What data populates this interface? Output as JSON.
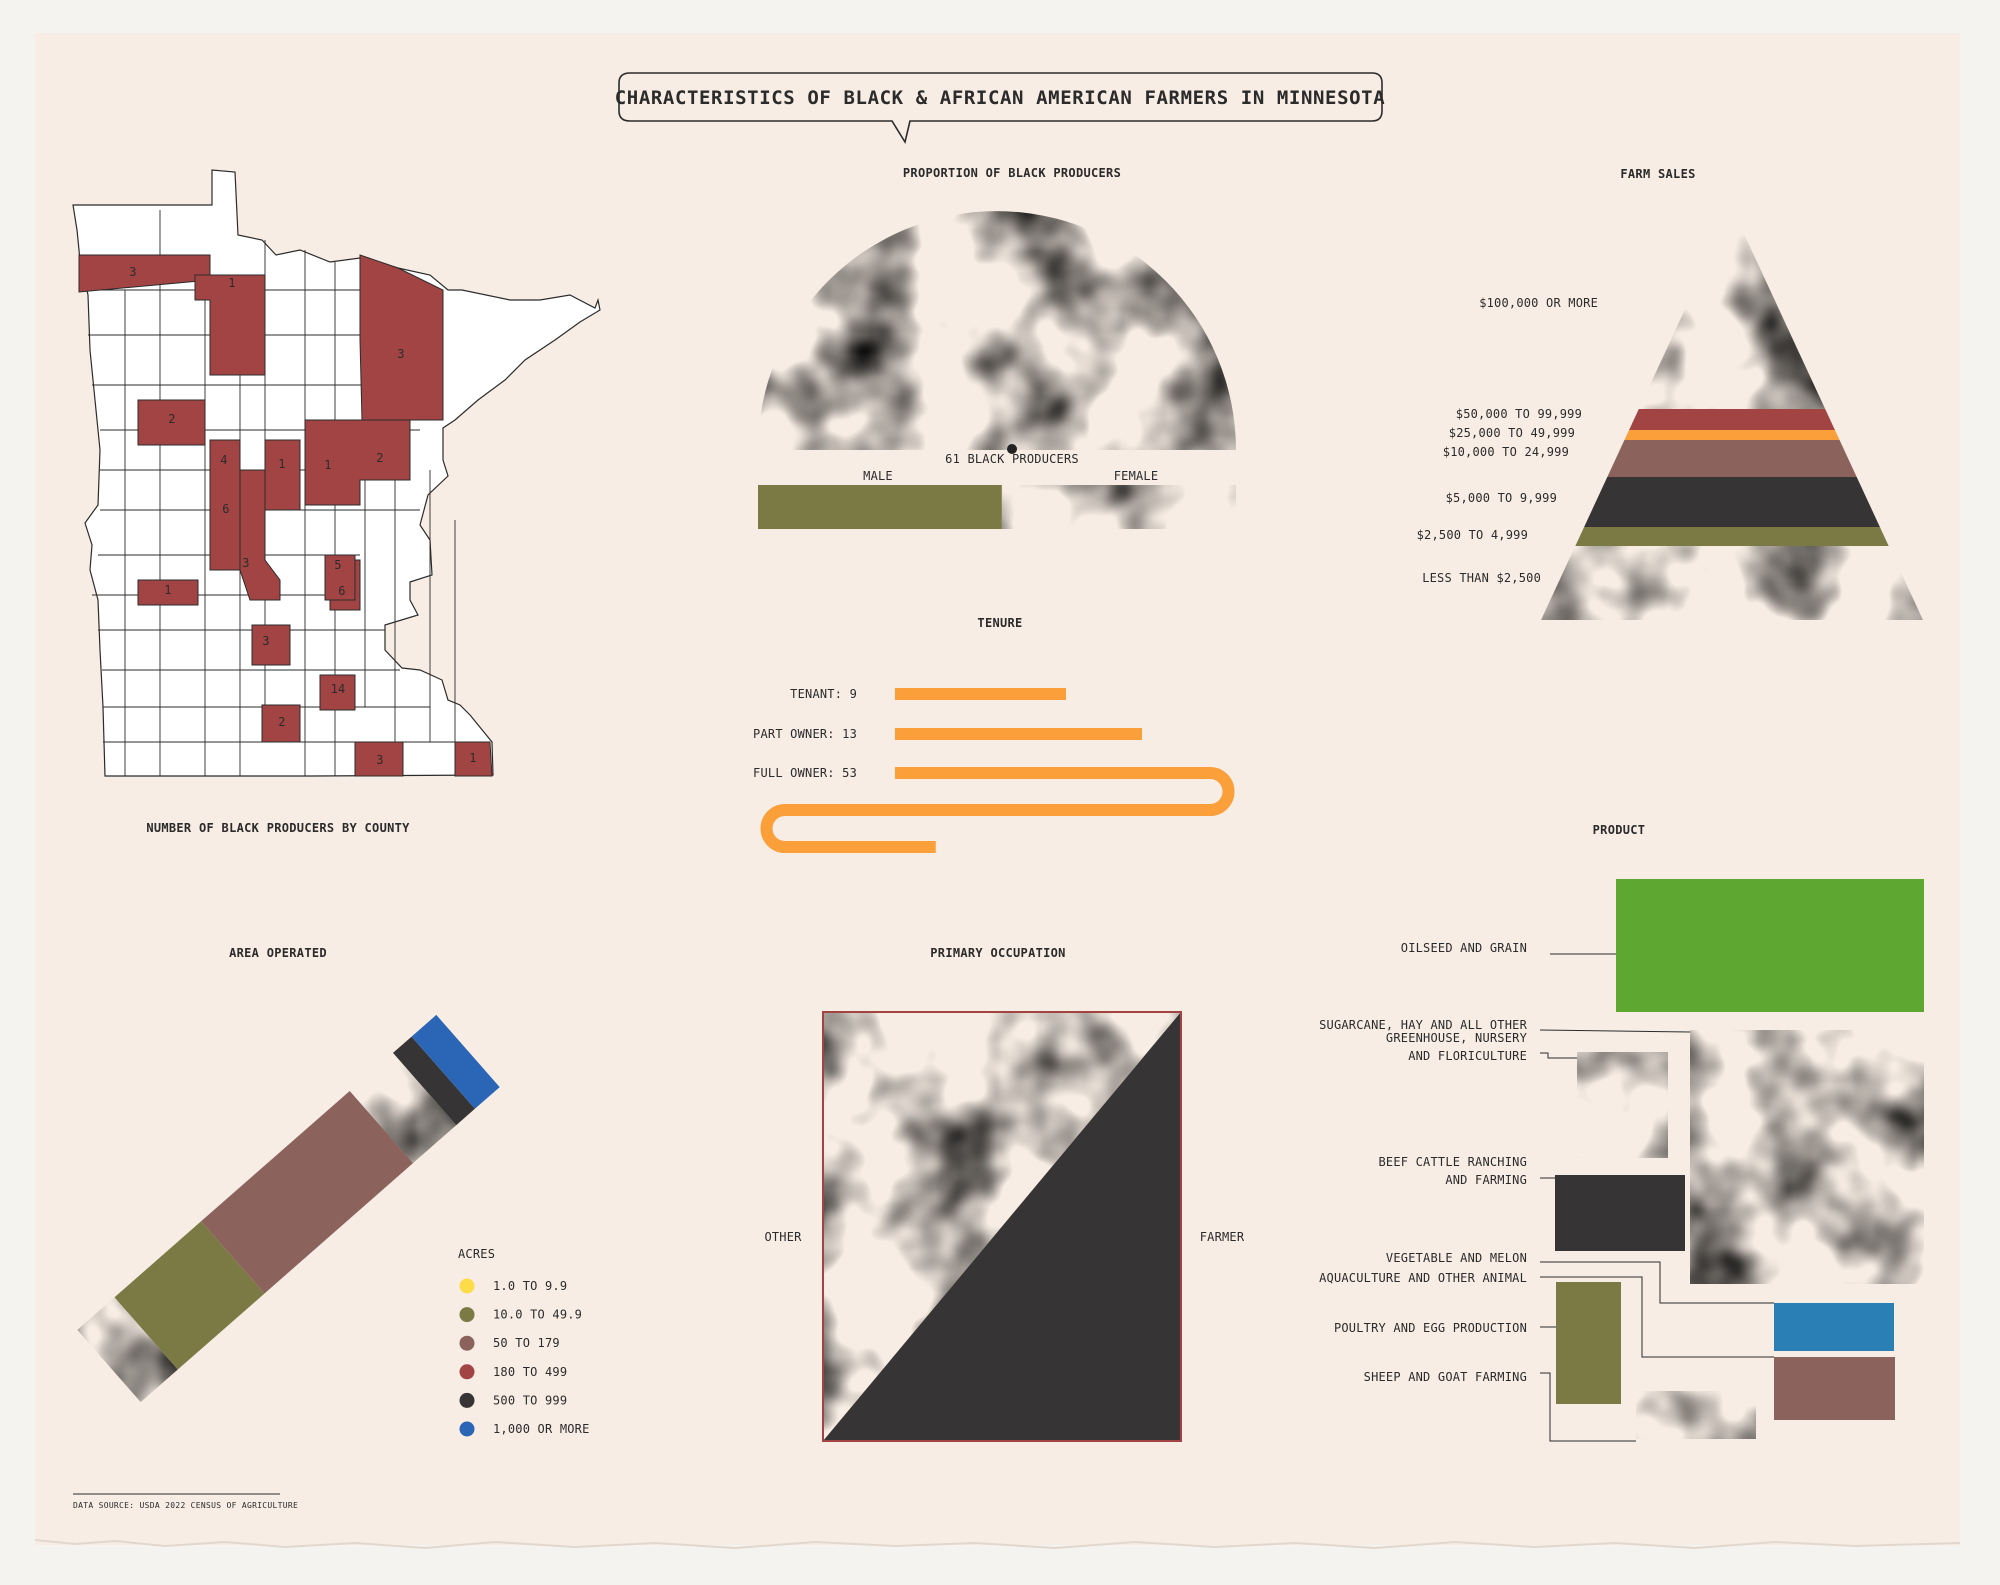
{
  "title": "CHARACTERISTICS OF BLACK & AFRICAN AMERICAN FARMERS IN MINNESOTA",
  "source": "DATA SOURCE: USDA 2022 CENSUS OF AGRICULTURE",
  "colors": {
    "yellow": "#fddc4a",
    "olive": "#7b7a45",
    "mauve": "#8c625d",
    "red": "#a24444",
    "dark": "#363434",
    "blue": "#2a66b5",
    "orange": "#fb9f3b",
    "green": "#5ea831",
    "teal": "#2a80b4"
  },
  "chart_data": [
    {
      "type": "map",
      "title": "NUMBER OF BLACK PRODUCERS BY COUNTY",
      "county_values": [
        "3",
        "1",
        "3",
        "2",
        "4",
        "1",
        "2",
        "1",
        "6",
        "3",
        "1",
        "5",
        "6",
        "3",
        "14",
        "2",
        "3",
        "1"
      ]
    },
    {
      "type": "semicircle",
      "title": "PROPORTION OF BLACK PRODUCERS",
      "center_label": "61 BLACK PRODUCERS",
      "categories": [
        "MALE",
        "FEMALE"
      ],
      "values": [
        0.51,
        0.49
      ]
    },
    {
      "type": "pyramid",
      "title": "FARM SALES",
      "categories": [
        "$100,000 OR MORE",
        "$50,000 TO 99,999",
        "$25,000 TO 49,999",
        "$10,000 TO 24,999",
        "$5,000 TO 9,999",
        "$2,500 TO 4,999",
        "LESS THAN $2,500"
      ],
      "colors": [
        "#2a66b5",
        "#a24444",
        "#fb9f3b",
        "#8c625d",
        "#363434",
        "#7b7a45",
        "#fddc4a"
      ]
    },
    {
      "type": "bar",
      "title": "TENURE",
      "categories": [
        "TENANT: 9",
        "PART OWNER: 13",
        "FULL OWNER: 53"
      ],
      "values": [
        9,
        13,
        53
      ]
    },
    {
      "type": "stacked-bar",
      "title": "AREA OPERATED",
      "legend_title": "ACRES",
      "categories": [
        "1.0 TO 9.9",
        "10.0 TO 49.9",
        "50 TO 179",
        "180 TO 499",
        "500 TO 999",
        "1,000 OR MORE"
      ],
      "colors": [
        "#fddc4a",
        "#7b7a45",
        "#8c625d",
        "#a24444",
        "#363434",
        "#2a66b5"
      ],
      "values": [
        6,
        14,
        24,
        7,
        3,
        4
      ]
    },
    {
      "type": "area",
      "title": "PRIMARY OCCUPATION",
      "categories": [
        "OTHER",
        "FARMER"
      ],
      "values": [
        0.5,
        0.5
      ]
    },
    {
      "type": "treemap",
      "title": "PRODUCT",
      "categories": [
        "OILSEED AND GRAIN",
        "SUGARCANE, HAY AND ALL OTHER",
        "GREENHOUSE, NURSERY\nAND FLORICULTURE",
        "BEEF CATTLE RANCHING\nAND FARMING",
        "VEGETABLE AND MELON",
        "AQUACULTURE AND OTHER ANIMAL",
        "POULTRY AND EGG PRODUCTION",
        "SHEEP AND GOAT FARMING"
      ]
    }
  ]
}
